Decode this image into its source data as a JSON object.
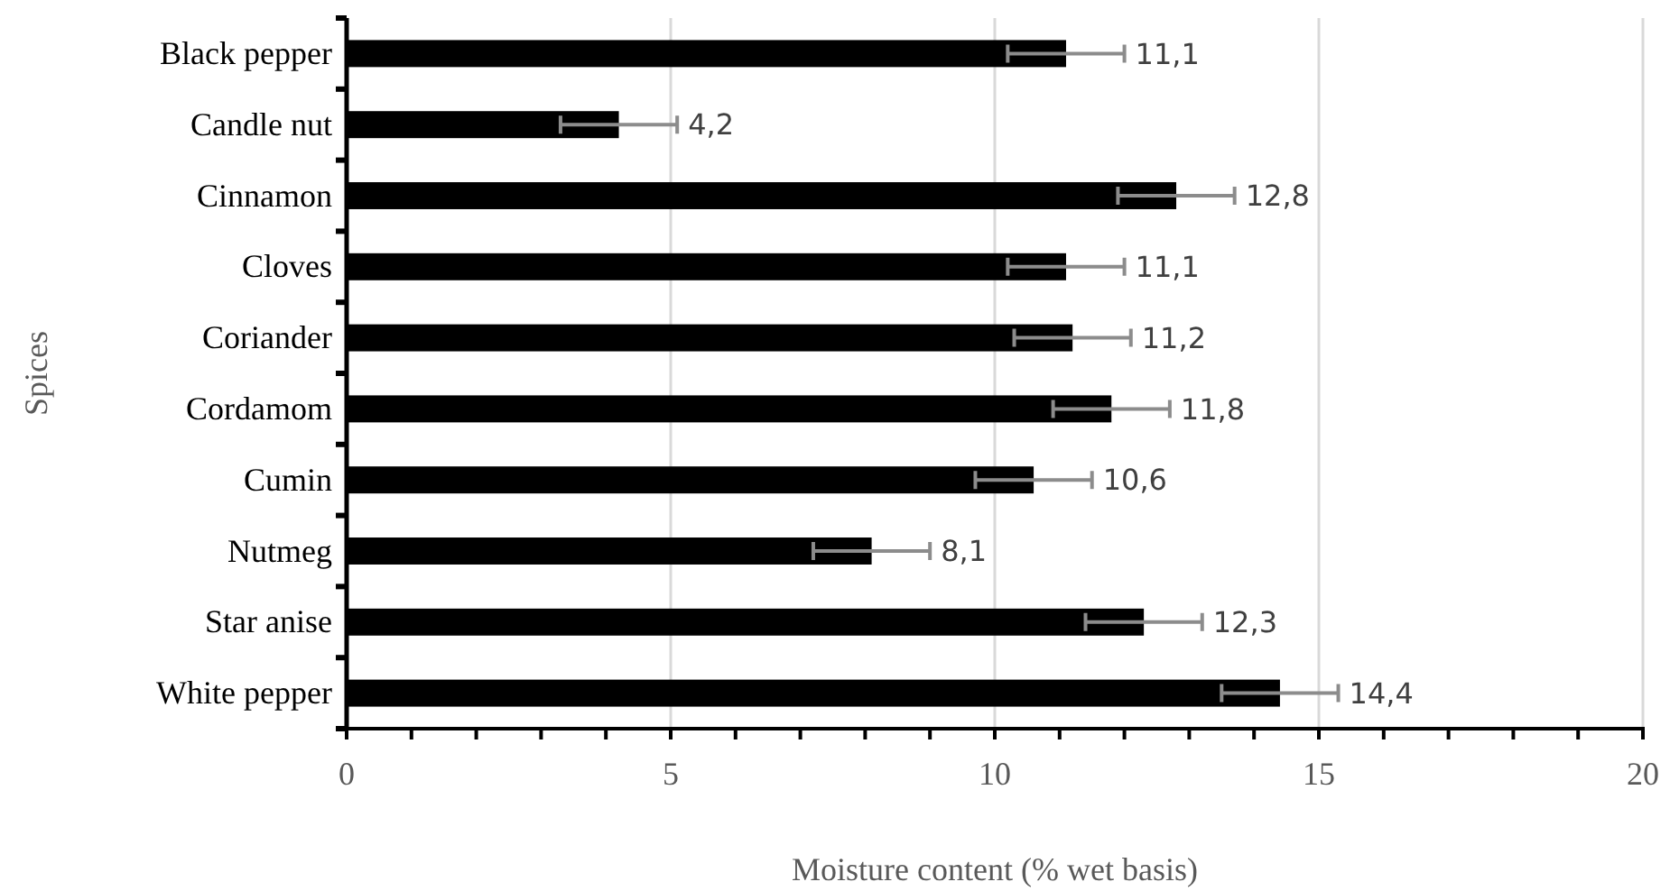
{
  "chart_data": {
    "type": "bar",
    "orientation": "horizontal",
    "xlabel": "Moisture content (% wet basis)",
    "ylabel": "Spices",
    "categories": [
      "Black pepper",
      "Candle nut",
      "Cinnamon",
      "Cloves",
      "Coriander",
      "Cordamom",
      "Cumin",
      "Nutmeg",
      "Star anise",
      "White pepper"
    ],
    "values": [
      11.1,
      4.2,
      12.8,
      11.1,
      11.2,
      11.8,
      10.6,
      8.1,
      12.3,
      14.4
    ],
    "value_labels": [
      "11,1",
      "4,2",
      "12,8",
      "11,1",
      "11,2",
      "11,8",
      "10,6",
      "8,1",
      "12,3",
      "14,4"
    ],
    "errors": [
      0.9,
      0.9,
      0.9,
      0.9,
      0.9,
      0.9,
      0.9,
      0.9,
      0.9,
      0.9
    ],
    "color": "#000000",
    "xlim": [
      0,
      20
    ],
    "xticks": [
      0,
      {
        "value": 1,
        "label": null
      },
      {
        "value": 2,
        "label": null
      },
      {
        "value": 3,
        "label": null
      },
      {
        "value": 4,
        "label": null
      },
      5,
      {
        "value": 6,
        "label": null
      },
      {
        "value": 7,
        "label": null
      },
      {
        "value": 8,
        "label": null
      },
      {
        "value": 9,
        "label": null
      },
      10,
      {
        "value": 11,
        "label": null
      },
      {
        "value": 12,
        "label": null
      },
      {
        "value": 13,
        "label": null
      },
      {
        "value": 14,
        "label": null
      },
      15,
      {
        "value": 16,
        "label": null
      },
      {
        "value": 17,
        "label": null
      },
      {
        "value": 18,
        "label": null
      },
      {
        "value": 19,
        "label": null
      },
      20
    ],
    "grid": "x"
  }
}
